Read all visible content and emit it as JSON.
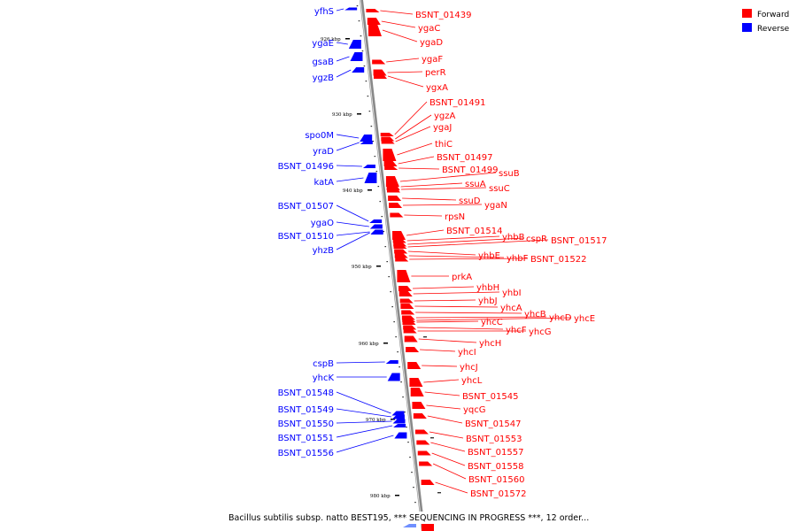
{
  "caption": "Bacillus subtilis subsp. natto BEST195, *** SEQUENCING IN PROGRESS ***, 12 order...",
  "legend": [
    {
      "label": "Forward",
      "color": "#ff0000"
    },
    {
      "label": "Reverse",
      "color": "#0000ff"
    }
  ],
  "kbp_marks": [
    "926 kbp",
    "930 kbp",
    "940 kbp",
    "950 kbp",
    "960 kbp",
    "970 kbp",
    "980 kbp"
  ],
  "reverse_genes": [
    "yfhS",
    "ygaE",
    "gsaB",
    "ygzB",
    "spo0M",
    "yraD",
    "BSNT_01496",
    "katA",
    "BSNT_01507",
    "ygaO",
    "BSNT_01510",
    "yhzB",
    "cspB",
    "yhcK",
    "BSNT_01548",
    "BSNT_01549",
    "BSNT_01550",
    "BSNT_01551",
    "BSNT_01556"
  ],
  "forward_genes": [
    "BSNT_01439",
    "ygaC",
    "ygaD",
    "ygaF",
    "perR",
    "ygxA",
    "BSNT_01491",
    "ygzA",
    "ygaJ",
    "thiC",
    "BSNT_01497",
    "BSNT_01499",
    "ssuB",
    "ssuA",
    "ssuC",
    "ssuD",
    "ygaN",
    "rpsN",
    "BSNT_01514",
    "yhbB",
    "cspR",
    "BSNT_01517",
    "yhbE",
    "yhbF",
    "BSNT_01522",
    "prkA",
    "yhbH",
    "yhbI",
    "yhbJ",
    "yhcA",
    "yhcB",
    "yhcC",
    "yhcD",
    "yhcE",
    "yhcF",
    "yhcG",
    "yhcH",
    "yhcI",
    "yhcJ",
    "yhcL",
    "BSNT_01545",
    "yqcG",
    "BSNT_01547",
    "BSNT_01553",
    "BSNT_01557",
    "BSNT_01558",
    "BSNT_01560",
    "BSNT_01572"
  ]
}
